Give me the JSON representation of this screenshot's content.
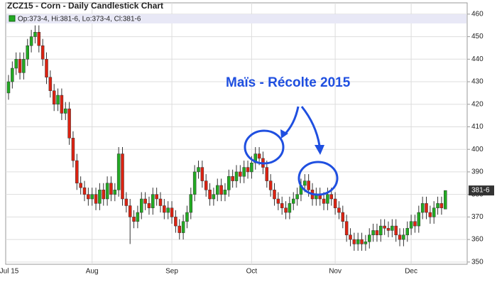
{
  "chart_data": {
    "type": "candlestick",
    "title": "ZCZ15 - Corn - Daily Candlestick Chart",
    "legend_text": "Op:373-4, Hi:381-6, Lo:373-4, Cl:381-6",
    "annotation": "Maïs - Récolte 2015",
    "last_price_label": {
      "value": 381.75,
      "label": "381-6"
    },
    "categories": [
      "Jul 15",
      null,
      null,
      null,
      null,
      null,
      null,
      null,
      null,
      null,
      null,
      null,
      null,
      null,
      null,
      null,
      null,
      null,
      null,
      null,
      null,
      null,
      "Aug",
      null,
      null,
      null,
      null,
      null,
      null,
      null,
      null,
      null,
      null,
      null,
      null,
      null,
      null,
      null,
      null,
      null,
      null,
      null,
      null,
      "Sep",
      null,
      null,
      null,
      null,
      null,
      null,
      null,
      null,
      null,
      null,
      null,
      null,
      null,
      null,
      null,
      null,
      null,
      null,
      null,
      null,
      "Oct",
      null,
      null,
      null,
      null,
      null,
      null,
      null,
      null,
      null,
      null,
      null,
      null,
      null,
      null,
      null,
      null,
      null,
      null,
      null,
      null,
      null,
      "Nov",
      null,
      null,
      null,
      null,
      null,
      null,
      null,
      null,
      null,
      null,
      null,
      null,
      null,
      null,
      null,
      null,
      null,
      null,
      null,
      "Dec",
      null,
      null,
      null,
      null,
      null,
      null,
      null,
      null,
      null
    ],
    "open": [
      425,
      430,
      436,
      440,
      434,
      440,
      446,
      450,
      452,
      446,
      440,
      432,
      426,
      420,
      424,
      416,
      418,
      405,
      395,
      385,
      383,
      380,
      378,
      380,
      376,
      382,
      378,
      385,
      380,
      382,
      398,
      378,
      375,
      370,
      368,
      372,
      378,
      376,
      374,
      380,
      378,
      375,
      372,
      374,
      370,
      366,
      363,
      368,
      372,
      380,
      390,
      392,
      386,
      382,
      378,
      380,
      384,
      380,
      382,
      388,
      386,
      390,
      388,
      392,
      390,
      394,
      398,
      396,
      392,
      386,
      382,
      378,
      376,
      374,
      372,
      376,
      378,
      380,
      384,
      386,
      382,
      378,
      380,
      378,
      376,
      380,
      378,
      374,
      372,
      368,
      362,
      360,
      358,
      360,
      358,
      359,
      362,
      364,
      362,
      366,
      365,
      364,
      366,
      362,
      360,
      362,
      365,
      368,
      366,
      372,
      376,
      372,
      370,
      374,
      376,
      373.5
    ],
    "high": [
      433,
      439,
      443,
      443,
      443,
      449,
      453,
      455,
      455,
      449,
      443,
      435,
      429,
      427,
      427,
      421,
      421,
      408,
      398,
      388,
      386,
      383,
      383,
      383,
      385,
      385,
      388,
      388,
      385,
      401,
      401,
      381,
      378,
      373,
      375,
      381,
      381,
      379,
      383,
      383,
      381,
      378,
      377,
      377,
      373,
      369,
      371,
      375,
      383,
      393,
      395,
      395,
      389,
      385,
      383,
      387,
      387,
      385,
      391,
      391,
      393,
      393,
      395,
      395,
      397,
      401,
      401,
      399,
      395,
      389,
      385,
      381,
      379,
      377,
      379,
      381,
      383,
      387,
      389,
      389,
      385,
      383,
      383,
      381,
      383,
      383,
      381,
      377,
      375,
      371,
      365,
      363,
      363,
      363,
      362,
      365,
      367,
      367,
      369,
      369,
      368,
      369,
      369,
      365,
      365,
      368,
      371,
      371,
      375,
      379,
      379,
      375,
      377,
      379,
      379,
      381.75
    ],
    "low": [
      422,
      427,
      433,
      431,
      431,
      437,
      443,
      447,
      443,
      437,
      429,
      423,
      417,
      417,
      413,
      413,
      402,
      392,
      382,
      380,
      377,
      375,
      375,
      373,
      373,
      375,
      375,
      377,
      377,
      379,
      375,
      372,
      358,
      365,
      365,
      369,
      373,
      371,
      371,
      375,
      372,
      369,
      369,
      367,
      363,
      360,
      360,
      365,
      369,
      377,
      387,
      383,
      379,
      375,
      375,
      377,
      377,
      377,
      379,
      383,
      383,
      385,
      385,
      387,
      387,
      391,
      393,
      389,
      383,
      379,
      375,
      373,
      371,
      369,
      369,
      373,
      375,
      377,
      381,
      379,
      375,
      375,
      375,
      373,
      373,
      375,
      371,
      369,
      365,
      359,
      357,
      355,
      355,
      355,
      355,
      356,
      359,
      359,
      359,
      362,
      361,
      361,
      359,
      357,
      357,
      359,
      362,
      363,
      363,
      369,
      369,
      367,
      367,
      371,
      371,
      373.5
    ],
    "close": [
      430,
      436,
      440,
      434,
      440,
      446,
      450,
      452,
      446,
      440,
      432,
      426,
      420,
      424,
      416,
      418,
      405,
      395,
      385,
      383,
      380,
      378,
      380,
      376,
      382,
      378,
      385,
      380,
      382,
      398,
      378,
      375,
      370,
      368,
      372,
      378,
      376,
      374,
      380,
      378,
      375,
      372,
      374,
      370,
      366,
      363,
      368,
      372,
      380,
      390,
      392,
      386,
      382,
      378,
      380,
      384,
      380,
      382,
      388,
      386,
      390,
      388,
      392,
      390,
      394,
      398,
      396,
      392,
      386,
      382,
      378,
      376,
      374,
      372,
      376,
      378,
      380,
      384,
      386,
      382,
      378,
      380,
      378,
      376,
      380,
      378,
      374,
      372,
      368,
      362,
      360,
      358,
      360,
      358,
      359,
      362,
      364,
      362,
      366,
      365,
      364,
      366,
      362,
      360,
      362,
      365,
      368,
      366,
      372,
      376,
      372,
      370,
      374,
      376,
      374,
      381.75
    ],
    "up_color": "#22aa22",
    "down_color": "#dd2211",
    "ylim": [
      349,
      465
    ],
    "yticks": [
      350,
      360,
      370,
      380,
      390,
      400,
      410,
      420,
      430,
      440,
      450,
      460
    ],
    "grid": true
  }
}
